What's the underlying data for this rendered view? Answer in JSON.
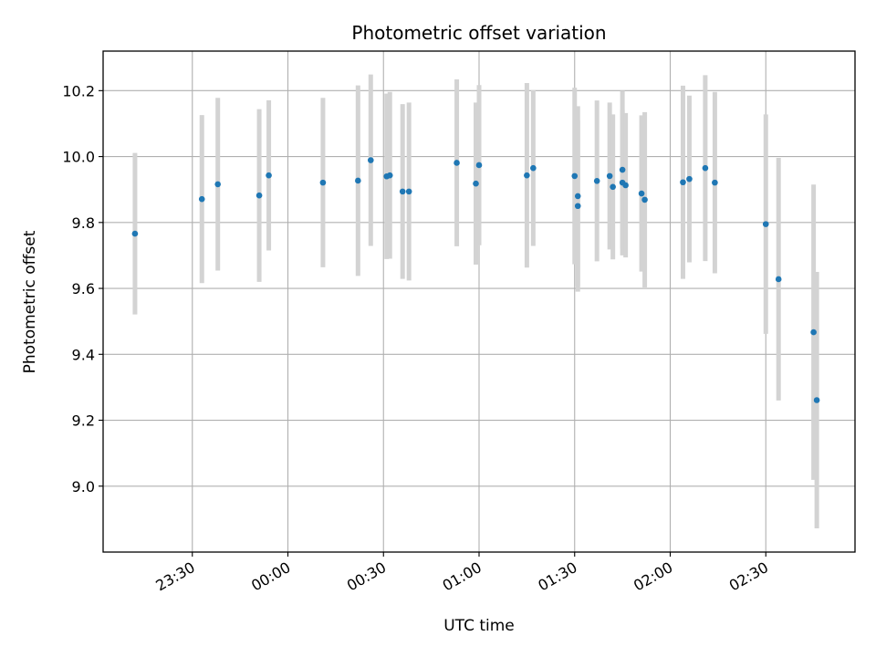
{
  "chart_data": {
    "type": "scatter",
    "title": "Photometric offset variation",
    "xlabel": "UTC time",
    "ylabel": "Photometric offset",
    "x_tick_labels": [
      "23:30",
      "00:00",
      "00:30",
      "01:00",
      "01:30",
      "02:00",
      "02:30"
    ],
    "x_ticks": [
      "23:30",
      "00:00",
      "00:30",
      "01:00",
      "01:30",
      "02:00",
      "02:30"
    ],
    "y_ticks": [
      9.0,
      9.2,
      9.4,
      9.6,
      9.8,
      10.0,
      10.2
    ],
    "y_tick_labels": [
      "9.0",
      "9.2",
      "9.4",
      "9.6",
      "9.8",
      "10.0",
      "10.2"
    ],
    "xlim": [
      "23:02",
      "02:58"
    ],
    "ylim": [
      8.8,
      10.32
    ],
    "grid": true,
    "colors": {
      "points": "#1f77b4",
      "error_bars": "#d3d3d3",
      "grid": "#b0b0b0"
    },
    "series": [
      {
        "points": [
          {
            "x": "23:12",
            "y": 9.766,
            "err": 0.245
          },
          {
            "x": "23:33",
            "y": 9.871,
            "err": 0.255
          },
          {
            "x": "23:38",
            "y": 9.916,
            "err": 0.262
          },
          {
            "x": "23:51",
            "y": 9.882,
            "err": 0.262
          },
          {
            "x": "23:54",
            "y": 9.943,
            "err": 0.228
          },
          {
            "x": "00:11",
            "y": 9.921,
            "err": 0.257
          },
          {
            "x": "00:22",
            "y": 9.927,
            "err": 0.289
          },
          {
            "x": "00:26",
            "y": 9.989,
            "err": 0.26
          },
          {
            "x": "00:31",
            "y": 9.94,
            "err": 0.251
          },
          {
            "x": "00:32",
            "y": 9.943,
            "err": 0.253
          },
          {
            "x": "00:36",
            "y": 9.894,
            "err": 0.265
          },
          {
            "x": "00:38",
            "y": 9.894,
            "err": 0.27
          },
          {
            "x": "00:53",
            "y": 9.981,
            "err": 0.253
          },
          {
            "x": "00:59",
            "y": 9.918,
            "err": 0.246
          },
          {
            "x": "01:00",
            "y": 9.974,
            "err": 0.243
          },
          {
            "x": "01:15",
            "y": 9.943,
            "err": 0.28
          },
          {
            "x": "01:17",
            "y": 9.965,
            "err": 0.236
          },
          {
            "x": "01:30",
            "y": 9.941,
            "err": 0.268
          },
          {
            "x": "01:31",
            "y": 9.85,
            "err": 0.26
          },
          {
            "x": "01:31",
            "y": 9.88,
            "err": 0.273
          },
          {
            "x": "01:37",
            "y": 9.926,
            "err": 0.244
          },
          {
            "x": "01:41",
            "y": 9.941,
            "err": 0.223
          },
          {
            "x": "01:42",
            "y": 9.908,
            "err": 0.22
          },
          {
            "x": "01:45",
            "y": 9.96,
            "err": 0.24
          },
          {
            "x": "01:45",
            "y": 9.921,
            "err": 0.221
          },
          {
            "x": "01:46",
            "y": 9.913,
            "err": 0.219
          },
          {
            "x": "01:51",
            "y": 9.888,
            "err": 0.237
          },
          {
            "x": "01:52",
            "y": 9.869,
            "err": 0.266
          },
          {
            "x": "02:04",
            "y": 9.922,
            "err": 0.293
          },
          {
            "x": "02:06",
            "y": 9.932,
            "err": 0.253
          },
          {
            "x": "02:11",
            "y": 9.965,
            "err": 0.282
          },
          {
            "x": "02:14",
            "y": 9.921,
            "err": 0.275
          },
          {
            "x": "02:30",
            "y": 9.795,
            "err": 0.333
          },
          {
            "x": "02:34",
            "y": 9.628,
            "err": 0.368
          },
          {
            "x": "02:45",
            "y": 9.467,
            "err": 0.448
          },
          {
            "x": "02:46",
            "y": 9.261,
            "err": 0.389
          }
        ]
      }
    ]
  }
}
